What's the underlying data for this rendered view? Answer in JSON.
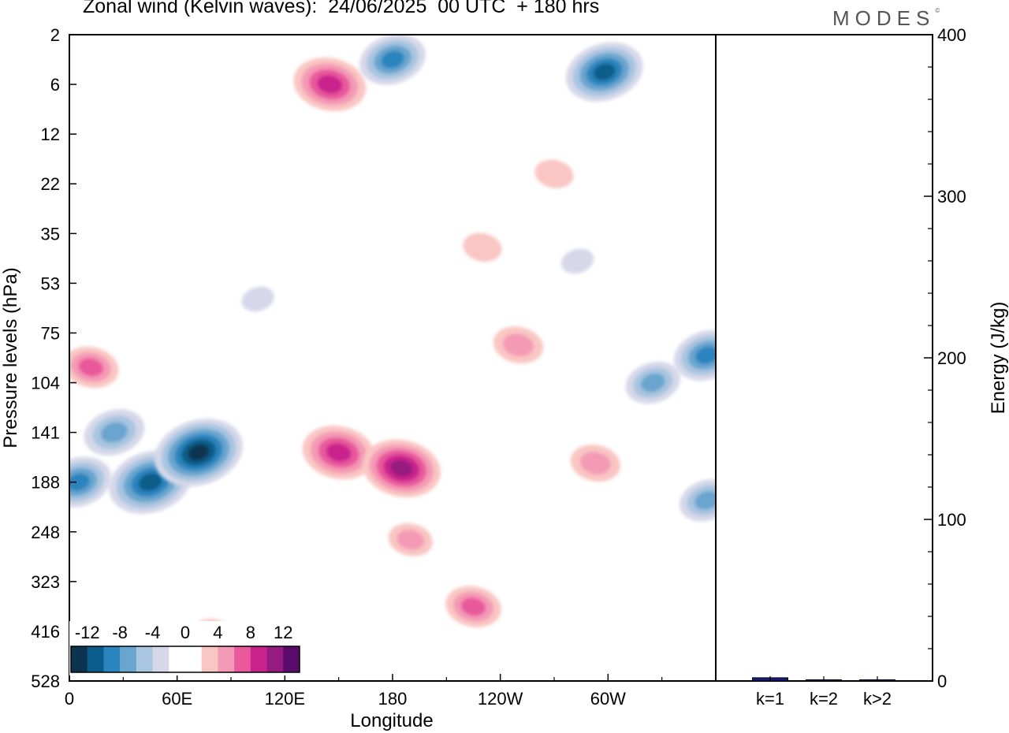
{
  "chart_data": [
    {
      "type": "heatmap",
      "title": "Zonal wind (Kelvin waves):  24/06/2025  00 UTC  + 180 hrs",
      "xlabel": "Longitude",
      "ylabel": "Pressure levels (hPa)",
      "x_ticks": [
        "0",
        "60E",
        "120E",
        "180",
        "120W",
        "60W"
      ],
      "y_ticks": [
        "2",
        "6",
        "12",
        "22",
        "35",
        "53",
        "75",
        "104",
        "141",
        "188",
        "248",
        "323",
        "416",
        "528"
      ],
      "colorbar": {
        "labels": [
          "-12",
          "-8",
          "-4",
          "0",
          "4",
          "8",
          "12"
        ],
        "colors": [
          "#0c3450",
          "#0a5d8a",
          "#2a84bd",
          "#69a5cf",
          "#a9c5e0",
          "#d6d8e9",
          "#ffffff",
          "#ffffff",
          "#f9c6c3",
          "#f49ab5",
          "#e9599b",
          "#c9228d",
          "#961b80",
          "#5c0a6b"
        ]
      },
      "regions": [
        {
          "lon": 45,
          "level": 188,
          "value": -11
        },
        {
          "lon": 72,
          "level": 160,
          "value": -12
        },
        {
          "lon": 5,
          "level": 188,
          "value": -8
        },
        {
          "lon": 25,
          "level": 141,
          "value": -7
        },
        {
          "lon": 105,
          "level": 60,
          "value": -2
        },
        {
          "lon": 150,
          "level": 160,
          "value": 9
        },
        {
          "lon": 185,
          "level": 175,
          "value": 10
        },
        {
          "lon": 190,
          "level": 260,
          "value": 4
        },
        {
          "lon": 225,
          "level": 370,
          "value": 6
        },
        {
          "lon": 293,
          "level": 170,
          "value": 5
        },
        {
          "lon": 250,
          "level": 82,
          "value": 5
        },
        {
          "lon": 325,
          "level": 104,
          "value": -6
        },
        {
          "lon": 355,
          "level": 88,
          "value": -8
        },
        {
          "lon": 355,
          "level": 210,
          "value": -6
        },
        {
          "lon": 12,
          "level": 95,
          "value": 6
        },
        {
          "lon": 80,
          "level": 420,
          "value": 3
        },
        {
          "lon": 145,
          "level": 6,
          "value": 9
        },
        {
          "lon": 180,
          "level": 4,
          "value": -8
        },
        {
          "lon": 298,
          "level": 5,
          "value": -10
        },
        {
          "lon": 270,
          "level": 20,
          "value": 3
        },
        {
          "lon": 230,
          "level": 40,
          "value": 3
        },
        {
          "lon": 283,
          "level": 45,
          "value": -2
        }
      ]
    },
    {
      "type": "bar",
      "ylabel": "Energy (J/kg)",
      "categories": [
        "k=1",
        "k=2",
        "k>2"
      ],
      "values": [
        2.0,
        0.7,
        0.6
      ],
      "ylim": [
        0,
        400
      ],
      "y_ticks": [
        "0",
        "100",
        "200",
        "300",
        "400"
      ]
    }
  ],
  "branding": {
    "name": "MODES",
    "mark": "©"
  }
}
